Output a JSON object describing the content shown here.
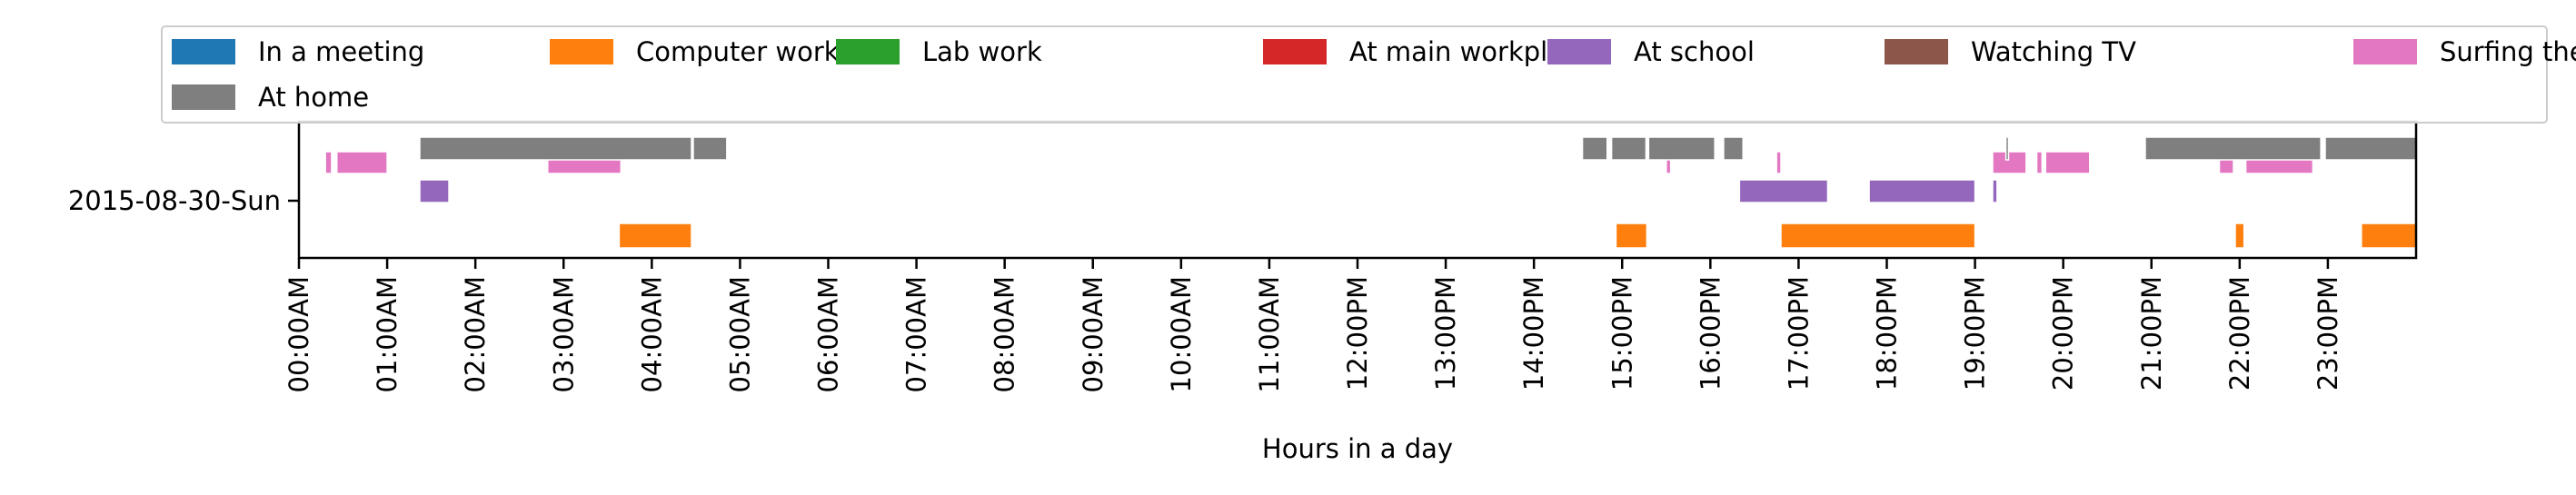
{
  "chart_data": {
    "type": "timeline",
    "title": "",
    "xlabel": "Hours in a day",
    "ylabel": "",
    "row_label": "2015-08-30-Sun",
    "xlim": [
      0,
      24
    ],
    "x_unit": "hours",
    "tick_labels": [
      "00:00AM",
      "01:00AM",
      "02:00AM",
      "03:00AM",
      "04:00AM",
      "05:00AM",
      "06:00AM",
      "07:00AM",
      "08:00AM",
      "09:00AM",
      "10:00AM",
      "11:00AM",
      "12:00PM",
      "13:00PM",
      "14:00PM",
      "15:00PM",
      "16:00PM",
      "17:00PM",
      "18:00PM",
      "19:00PM",
      "20:00PM",
      "21:00PM",
      "22:00PM",
      "23:00PM"
    ],
    "grid": false,
    "legend_placement": "top",
    "series": [
      {
        "name": "In a meeting",
        "color": "#1f77b4",
        "lane": "none",
        "intervals": []
      },
      {
        "name": "Computer work",
        "color": "#ff7f0e",
        "lane": "bottom",
        "intervals": [
          [
            3.63,
            4.45
          ],
          [
            14.93,
            15.28
          ],
          [
            16.8,
            19.0
          ],
          [
            21.95,
            22.05
          ],
          [
            23.38,
            24.0
          ]
        ]
      },
      {
        "name": "Lab work",
        "color": "#2ca02c",
        "lane": "none",
        "intervals": []
      },
      {
        "name": "At main workplace",
        "color": "#d62728",
        "lane": "none",
        "intervals": []
      },
      {
        "name": "At school",
        "color": "#9467bd",
        "lane": "middle",
        "intervals": [
          [
            1.37,
            1.7
          ],
          [
            16.33,
            17.33
          ],
          [
            17.8,
            19.0
          ],
          [
            19.2,
            19.25
          ]
        ]
      },
      {
        "name": "Watching TV",
        "color": "#8c564b",
        "lane": "none",
        "intervals": []
      },
      {
        "name": "Surfing the internet",
        "color": "#e377c2",
        "lane": "upper",
        "intervals": [
          [
            0.3,
            0.37
          ],
          [
            0.43,
            1.0
          ],
          [
            2.82,
            3.65
          ],
          [
            15.5,
            15.55
          ],
          [
            16.75,
            16.8
          ],
          [
            19.2,
            19.58
          ],
          [
            19.7,
            19.76
          ],
          [
            19.8,
            20.3
          ],
          [
            21.77,
            21.93
          ],
          [
            22.07,
            22.83
          ]
        ]
      },
      {
        "name": "At home",
        "color": "#7f7f7f",
        "lane": "top",
        "intervals": [
          [
            1.37,
            4.45
          ],
          [
            4.47,
            4.85
          ],
          [
            14.55,
            14.83
          ],
          [
            14.88,
            15.27
          ],
          [
            15.3,
            16.05
          ],
          [
            16.15,
            16.37
          ],
          [
            19.35,
            19.38
          ],
          [
            20.93,
            22.92
          ],
          [
            22.97,
            24.0
          ]
        ]
      }
    ]
  }
}
